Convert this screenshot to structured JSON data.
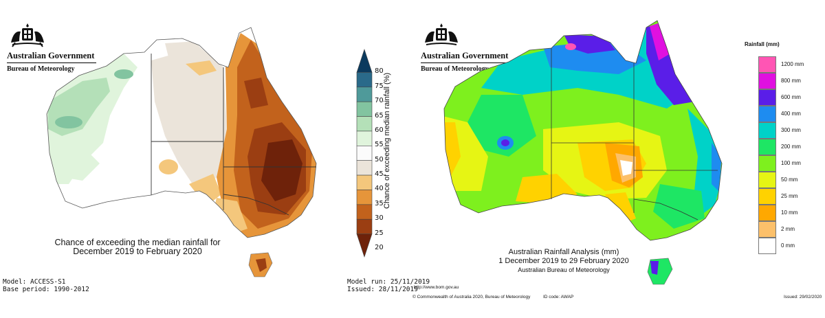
{
  "left": {
    "logo": {
      "government": "Australian Government",
      "bureau": "Bureau of Meteorology"
    },
    "caption": {
      "line1": "Chance of exceeding the median rainfall for",
      "line2": "December 2019 to February 2020"
    },
    "model": "Model: ACCESS-S1",
    "base_period": "Base period: 1990-2012",
    "model_run": "Model run: 25/11/2019",
    "issued": "Issued: 28/11/2019",
    "colorbar": {
      "title": "Chance of exceeding median rainfall (%)",
      "ticks": [
        "80",
        "75",
        "70",
        "65",
        "60",
        "55",
        "50",
        "45",
        "40",
        "35",
        "30",
        "25",
        "20"
      ],
      "colors": [
        "#0b3a5e",
        "#2a6a8a",
        "#4f9a9a",
        "#82c4a0",
        "#b4e0b8",
        "#e0f4dc",
        "#fbfbfb",
        "#ebe4da",
        "#f4c77c",
        "#e6953a",
        "#c2621c",
        "#9b3e12",
        "#6e220a"
      ]
    }
  },
  "right": {
    "logo": {
      "government": "Australian Government",
      "bureau": "Bureau of Meteorology"
    },
    "caption": {
      "title": "Australian Rainfall Analysis (mm)",
      "dates": "1 December 2019 to 29 February 2020",
      "source": "Australian Bureau of Meteorology"
    },
    "url": "http://www.bom.gov.au",
    "copyright": "© Commonwealth of Australia 2020, Bureau of Meteorology",
    "id_code": "ID code: AWAP",
    "issued": "Issued: 29/02/2020",
    "legend": {
      "title": "Rainfall (mm)",
      "items": [
        {
          "label": "1200 mm",
          "color": "#ff55b4"
        },
        {
          "label": "800 mm",
          "color": "#e010e0"
        },
        {
          "label": "600 mm",
          "color": "#5a1ee8"
        },
        {
          "label": "400 mm",
          "color": "#1e8cf0"
        },
        {
          "label": "300 mm",
          "color": "#00d2c8"
        },
        {
          "label": "200 mm",
          "color": "#1ee664"
        },
        {
          "label": "100 mm",
          "color": "#7ef01e"
        },
        {
          "label": "50 mm",
          "color": "#e6f514"
        },
        {
          "label": "25 mm",
          "color": "#ffd200"
        },
        {
          "label": "10 mm",
          "color": "#ffa800"
        },
        {
          "label": "2 mm",
          "color": "#fcc06a"
        },
        {
          "label": "0 mm",
          "color": "#ffffff"
        }
      ]
    }
  }
}
